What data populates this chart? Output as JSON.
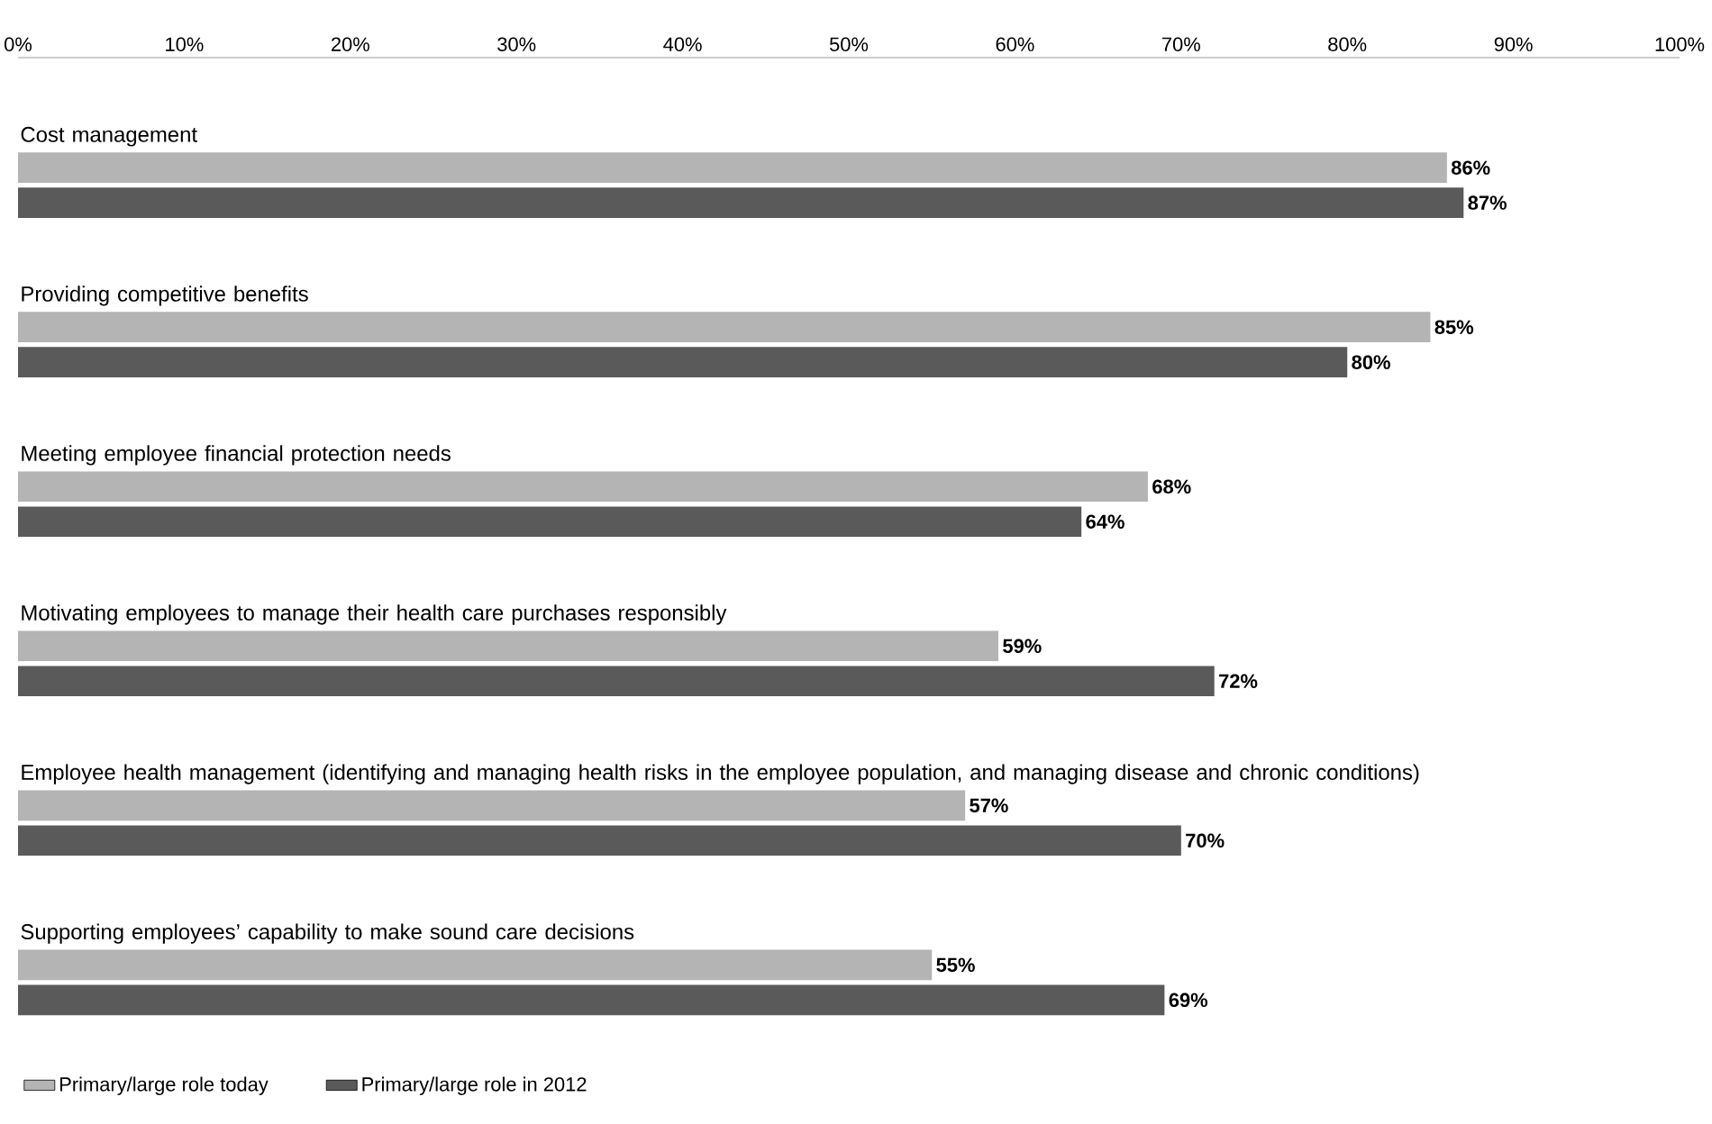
{
  "chart_data": {
    "type": "bar",
    "orientation": "horizontal",
    "categories": [
      "Cost management",
      "Providing competitive benefits",
      "Meeting employee financial protection needs",
      "Motivating employees to manage their health care purchases responsibly",
      "Employee health management (identifying and managing health risks in the employee population, and managing disease and chronic conditions)",
      "Supporting employees’ capability to make sound care decisions"
    ],
    "series": [
      {
        "name": "Primary/large role today",
        "color": "#b4b4b4",
        "values": [
          86,
          85,
          68,
          59,
          57,
          55
        ],
        "value_labels": [
          "86%",
          "85%",
          "68%",
          "59%",
          "57%",
          "55%"
        ]
      },
      {
        "name": "Primary/large role in 2012",
        "color": "#5a5a5a",
        "values": [
          87,
          80,
          64,
          72,
          70,
          69
        ],
        "value_labels": [
          "87%",
          "80%",
          "64%",
          "72%",
          "70%",
          "69%"
        ]
      }
    ],
    "xlim": [
      0,
      100
    ],
    "xticks": [
      {
        "value": 0,
        "label": "0%"
      },
      {
        "value": 10,
        "label": "10%"
      },
      {
        "value": 20,
        "label": "20%"
      },
      {
        "value": 30,
        "label": "30%"
      },
      {
        "value": 40,
        "label": "40%"
      },
      {
        "value": 50,
        "label": "50%"
      },
      {
        "value": 60,
        "label": "60%"
      },
      {
        "value": 70,
        "label": "70%"
      },
      {
        "value": 80,
        "label": "80%"
      },
      {
        "value": 90,
        "label": "90%"
      },
      {
        "value": 100,
        "label": "100%"
      }
    ],
    "legend": "bottom left"
  }
}
